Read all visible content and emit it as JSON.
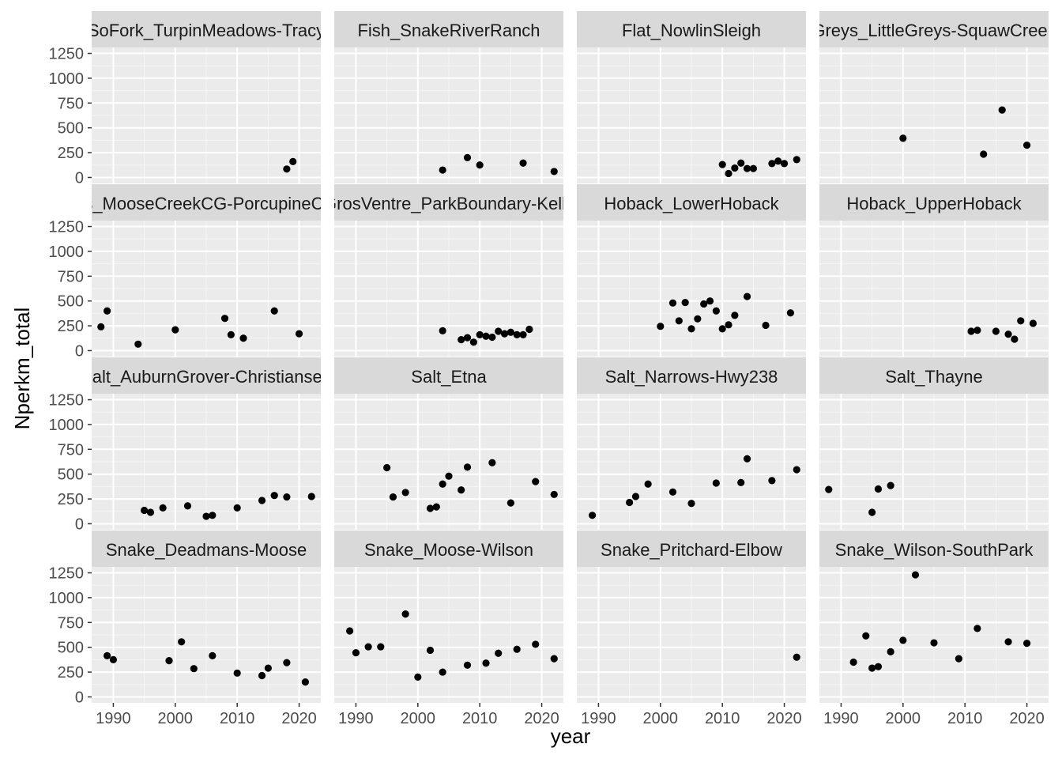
{
  "chart_data": {
    "type": "scatter",
    "xlabel": "year",
    "ylabel": "Nperkm_total",
    "xlim": [
      1986.5,
      2023.5
    ],
    "ylim": [
      -60,
      1310
    ],
    "x_ticks": [
      1990,
      2000,
      2010,
      2020
    ],
    "y_ticks": [
      0,
      250,
      500,
      750,
      1000,
      1250
    ],
    "x_tick_labels": [
      "1990",
      "2000",
      "2010",
      "2020"
    ],
    "y_tick_labels": [
      "0",
      "250",
      "500",
      "750",
      "1000",
      "1250"
    ],
    "grid": true,
    "layout": {
      "rows": 4,
      "cols": 4
    },
    "panels": [
      {
        "title": "SoFork_TurpinMeadows-Tracy",
        "points": [
          [
            2018,
            85
          ],
          [
            2019,
            160
          ]
        ]
      },
      {
        "title": "Fish_SnakeRiverRanch",
        "points": [
          [
            2004,
            75
          ],
          [
            2008,
            200
          ],
          [
            2010,
            125
          ],
          [
            2017,
            145
          ],
          [
            2022,
            60
          ]
        ]
      },
      {
        "title": "Flat_NowlinSleigh",
        "points": [
          [
            2010,
            130
          ],
          [
            2011,
            40
          ],
          [
            2012,
            95
          ],
          [
            2013,
            145
          ],
          [
            2014,
            90
          ],
          [
            2015,
            90
          ],
          [
            2018,
            140
          ],
          [
            2019,
            165
          ],
          [
            2020,
            140
          ],
          [
            2022,
            180
          ]
        ]
      },
      {
        "title": "Greys_LittleGreys-SquawCreek",
        "points": [
          [
            2000,
            395
          ],
          [
            2013,
            235
          ],
          [
            2016,
            680
          ],
          [
            2020,
            325
          ]
        ]
      },
      {
        "title": "Gros_MooseCreekCG-PorcupineCreek",
        "points": [
          [
            1988,
            240
          ],
          [
            1989,
            400
          ],
          [
            1994,
            65
          ],
          [
            2000,
            210
          ],
          [
            2008,
            325
          ],
          [
            2009,
            160
          ],
          [
            2011,
            125
          ],
          [
            2016,
            400
          ],
          [
            2020,
            170
          ]
        ]
      },
      {
        "title": "GrosVentre_ParkBoundary-Kelly",
        "points": [
          [
            2004,
            200
          ],
          [
            2007,
            110
          ],
          [
            2008,
            130
          ],
          [
            2009,
            85
          ],
          [
            2010,
            160
          ],
          [
            2011,
            145
          ],
          [
            2012,
            135
          ],
          [
            2013,
            195
          ],
          [
            2014,
            170
          ],
          [
            2015,
            185
          ],
          [
            2016,
            160
          ],
          [
            2017,
            160
          ],
          [
            2018,
            215
          ]
        ]
      },
      {
        "title": "Hoback_LowerHoback",
        "points": [
          [
            2000,
            245
          ],
          [
            2002,
            480
          ],
          [
            2003,
            300
          ],
          [
            2004,
            485
          ],
          [
            2005,
            220
          ],
          [
            2006,
            320
          ],
          [
            2007,
            470
          ],
          [
            2008,
            500
          ],
          [
            2009,
            400
          ],
          [
            2010,
            220
          ],
          [
            2011,
            260
          ],
          [
            2012,
            355
          ],
          [
            2014,
            545
          ],
          [
            2017,
            255
          ],
          [
            2021,
            380
          ]
        ]
      },
      {
        "title": "Hoback_UpperHoback",
        "points": [
          [
            2011,
            195
          ],
          [
            2012,
            205
          ],
          [
            2015,
            195
          ],
          [
            2017,
            165
          ],
          [
            2018,
            115
          ],
          [
            2019,
            300
          ],
          [
            2021,
            275
          ]
        ]
      },
      {
        "title": "Salt_AuburnGrover-Christiansen",
        "points": [
          [
            1995,
            135
          ],
          [
            1996,
            115
          ],
          [
            1998,
            160
          ],
          [
            2002,
            180
          ],
          [
            2005,
            75
          ],
          [
            2006,
            85
          ],
          [
            2010,
            160
          ],
          [
            2014,
            235
          ],
          [
            2016,
            285
          ],
          [
            2018,
            270
          ],
          [
            2022,
            275
          ]
        ]
      },
      {
        "title": "Salt_Etna",
        "points": [
          [
            1995,
            565
          ],
          [
            1996,
            270
          ],
          [
            1998,
            315
          ],
          [
            2002,
            155
          ],
          [
            2003,
            170
          ],
          [
            2004,
            400
          ],
          [
            2005,
            480
          ],
          [
            2007,
            340
          ],
          [
            2008,
            570
          ],
          [
            2012,
            615
          ],
          [
            2015,
            210
          ],
          [
            2019,
            425
          ],
          [
            2022,
            295
          ]
        ]
      },
      {
        "title": "Salt_Narrows-Hwy238",
        "points": [
          [
            1989,
            85
          ],
          [
            1995,
            215
          ],
          [
            1996,
            275
          ],
          [
            1998,
            400
          ],
          [
            2002,
            320
          ],
          [
            2005,
            205
          ],
          [
            2009,
            410
          ],
          [
            2013,
            415
          ],
          [
            2014,
            655
          ],
          [
            2018,
            435
          ],
          [
            2022,
            545
          ]
        ]
      },
      {
        "title": "Salt_Thayne",
        "points": [
          [
            1988,
            345
          ],
          [
            1995,
            115
          ],
          [
            1996,
            350
          ],
          [
            1998,
            385
          ]
        ]
      },
      {
        "title": "Snake_Deadmans-Moose",
        "points": [
          [
            1989,
            415
          ],
          [
            1990,
            375
          ],
          [
            1999,
            365
          ],
          [
            2001,
            555
          ],
          [
            2003,
            285
          ],
          [
            2006,
            415
          ],
          [
            2010,
            240
          ],
          [
            2014,
            215
          ],
          [
            2015,
            290
          ],
          [
            2018,
            345
          ],
          [
            2021,
            150
          ]
        ]
      },
      {
        "title": "Snake_Moose-Wilson",
        "points": [
          [
            1989,
            665
          ],
          [
            1990,
            445
          ],
          [
            1992,
            505
          ],
          [
            1994,
            505
          ],
          [
            1998,
            835
          ],
          [
            2000,
            200
          ],
          [
            2002,
            470
          ],
          [
            2004,
            250
          ],
          [
            2008,
            320
          ],
          [
            2011,
            340
          ],
          [
            2013,
            440
          ],
          [
            2016,
            480
          ],
          [
            2019,
            530
          ],
          [
            2022,
            385
          ]
        ]
      },
      {
        "title": "Snake_Pritchard-Elbow",
        "points": [
          [
            2022,
            400
          ]
        ]
      },
      {
        "title": "Snake_Wilson-SouthPark",
        "points": [
          [
            1992,
            350
          ],
          [
            1994,
            615
          ],
          [
            1995,
            290
          ],
          [
            1996,
            305
          ],
          [
            1998,
            455
          ],
          [
            2000,
            570
          ],
          [
            2002,
            1230
          ],
          [
            2005,
            545
          ],
          [
            2009,
            385
          ],
          [
            2012,
            690
          ],
          [
            2017,
            555
          ],
          [
            2020,
            540
          ]
        ]
      }
    ]
  }
}
